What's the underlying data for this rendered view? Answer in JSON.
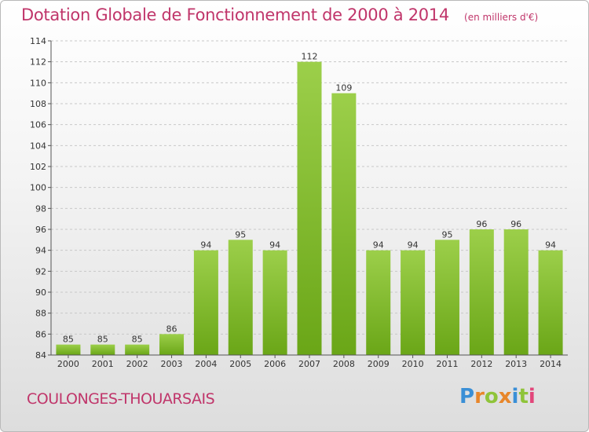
{
  "header": {
    "title": "Dotation Globale de Fonctionnement de 2000 à 2014",
    "unit": "(en milliers d'€)"
  },
  "commune": "COULONGES-THOUARSAIS",
  "logo": {
    "text": "Proxiti",
    "letters": [
      {
        "ch": "P",
        "color": "#3a8fd6"
      },
      {
        "ch": "r",
        "color": "#e8862a"
      },
      {
        "ch": "o",
        "color": "#8fc43a"
      },
      {
        "ch": "x",
        "color": "#e8862a"
      },
      {
        "ch": "i",
        "color": "#3a8fd6"
      },
      {
        "ch": "t",
        "color": "#8fc43a"
      },
      {
        "ch": "i",
        "color": "#e2467a"
      }
    ]
  },
  "colors": {
    "title": "#c0356a",
    "bar_top": "#9ccf4a",
    "bar_bottom": "#6aa617",
    "grid": "#c8c8c8"
  },
  "chart_data": {
    "type": "bar",
    "categories": [
      "2000",
      "2001",
      "2002",
      "2003",
      "2004",
      "2005",
      "2006",
      "2007",
      "2008",
      "2009",
      "2010",
      "2011",
      "2012",
      "2013",
      "2014"
    ],
    "values": [
      85,
      85,
      85,
      86,
      94,
      95,
      94,
      112,
      109,
      94,
      94,
      95,
      96,
      96,
      94
    ],
    "ylim": [
      84,
      114
    ],
    "yticks": [
      84,
      86,
      88,
      90,
      92,
      94,
      96,
      98,
      100,
      102,
      104,
      106,
      108,
      110,
      112,
      114
    ],
    "grid": true
  }
}
